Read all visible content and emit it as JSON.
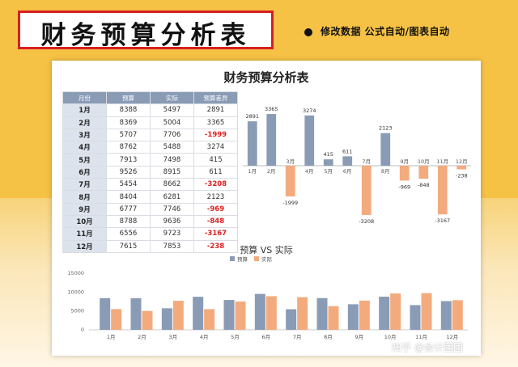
{
  "header": {
    "title": "财务预算分析表",
    "tagline": "修改数据  公式自动/图表自动"
  },
  "sheet": {
    "title": "财务预算分析表",
    "columns": [
      "月份",
      "预算",
      "实际",
      "预算差异"
    ],
    "rows": [
      {
        "month": "1月",
        "budget": "8388",
        "actual": "5497",
        "diff": "2891"
      },
      {
        "month": "2月",
        "budget": "8369",
        "actual": "5004",
        "diff": "3365"
      },
      {
        "month": "3月",
        "budget": "5707",
        "actual": "7706",
        "diff": "-1999"
      },
      {
        "month": "4月",
        "budget": "8762",
        "actual": "5488",
        "diff": "3274"
      },
      {
        "month": "5月",
        "budget": "7913",
        "actual": "7498",
        "diff": "415"
      },
      {
        "month": "6月",
        "budget": "9526",
        "actual": "8915",
        "diff": "611"
      },
      {
        "month": "7月",
        "budget": "5454",
        "actual": "8662",
        "diff": "-3208"
      },
      {
        "month": "8月",
        "budget": "8404",
        "actual": "6281",
        "diff": "2123"
      },
      {
        "month": "9月",
        "budget": "6777",
        "actual": "7746",
        "diff": "-969"
      },
      {
        "month": "10月",
        "budget": "8788",
        "actual": "9636",
        "diff": "-848"
      },
      {
        "month": "11月",
        "budget": "6556",
        "actual": "9723",
        "diff": "-3167"
      },
      {
        "month": "12月",
        "budget": "7615",
        "actual": "7853",
        "diff": "-238"
      }
    ]
  },
  "watermark": "知乎 @会计团团",
  "colors": {
    "positive": "#8a9bb5",
    "negative": "#f3ab7e",
    "accent_red": "#d61f1f"
  },
  "chart_data": [
    {
      "type": "bar",
      "title": "",
      "categories": [
        "1月",
        "2月",
        "3月",
        "4月",
        "5月",
        "6月",
        "7月",
        "8月",
        "9月",
        "10月",
        "11月",
        "12月"
      ],
      "values": [
        2891,
        3365,
        -1999,
        3274,
        415,
        611,
        -3208,
        2123,
        -969,
        -848,
        -3167,
        -238
      ],
      "ylim": [
        -4000,
        4000
      ],
      "grid": false
    },
    {
      "type": "bar",
      "title": "预算 VS 实际",
      "categories": [
        "1月",
        "2月",
        "3月",
        "4月",
        "5月",
        "6月",
        "7月",
        "8月",
        "9月",
        "10月",
        "11月",
        "12月"
      ],
      "series": [
        {
          "name": "预算",
          "values": [
            8388,
            8369,
            5707,
            8762,
            7913,
            9526,
            5454,
            8404,
            6777,
            8788,
            6556,
            7615
          ]
        },
        {
          "name": "实际",
          "values": [
            5497,
            5004,
            7706,
            5488,
            7498,
            8915,
            8662,
            6281,
            7746,
            9636,
            9723,
            7853
          ]
        }
      ],
      "yticks": [
        "0",
        "5000",
        "10000",
        "15000"
      ],
      "ylim": [
        0,
        15000
      ],
      "legend": "top-center",
      "grid": false
    }
  ]
}
